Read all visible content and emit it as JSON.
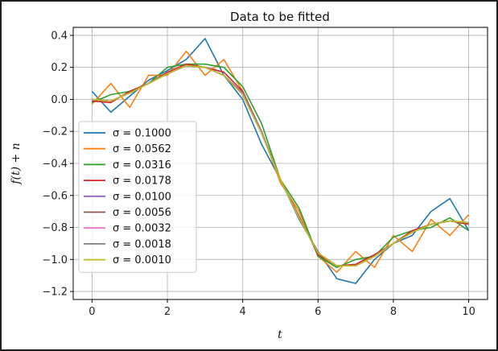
{
  "chart_data": {
    "type": "line",
    "title": "Data to be fitted",
    "xlabel": "t",
    "ylabel": "f(t) + n",
    "xlim": [
      -0.5,
      10.5
    ],
    "ylim": [
      -1.25,
      0.45
    ],
    "xticks": [
      0,
      2,
      4,
      6,
      8,
      10
    ],
    "yticks": [
      0.4,
      0.2,
      0.0,
      -0.2,
      -0.4,
      -0.6,
      -0.8,
      -1.0,
      -1.2
    ],
    "ytick_labels": [
      "0.4",
      "0.2",
      "0.0",
      "−0.2",
      "−0.4",
      "−0.6",
      "−0.8",
      "−1.0",
      "−1.2"
    ],
    "grid": true,
    "legend_position": "lower-left",
    "x": [
      0.0,
      0.5,
      1.0,
      1.5,
      2.0,
      2.5,
      3.0,
      3.5,
      4.0,
      4.5,
      5.0,
      5.5,
      6.0,
      6.5,
      7.0,
      7.5,
      8.0,
      8.5,
      9.0,
      9.5,
      10.0
    ],
    "series": [
      {
        "name": "σ = 0.1000",
        "color": "#1f77b4",
        "values": [
          0.05,
          -0.08,
          0.02,
          0.12,
          0.18,
          0.25,
          0.38,
          0.15,
          0.0,
          -0.28,
          -0.5,
          -0.75,
          -0.95,
          -1.12,
          -1.15,
          -1.0,
          -0.9,
          -0.85,
          -0.7,
          -0.62,
          -0.82
        ]
      },
      {
        "name": "σ = 0.0562",
        "color": "#ff7f0e",
        "values": [
          -0.03,
          0.1,
          -0.05,
          0.15,
          0.15,
          0.3,
          0.15,
          0.25,
          0.05,
          -0.2,
          -0.52,
          -0.7,
          -0.98,
          -1.08,
          -0.95,
          -1.05,
          -0.85,
          -0.95,
          -0.75,
          -0.85,
          -0.72
        ]
      },
      {
        "name": "σ = 0.0316",
        "color": "#2ca02c",
        "values": [
          -0.02,
          0.03,
          0.05,
          0.1,
          0.2,
          0.22,
          0.22,
          0.2,
          0.08,
          -0.15,
          -0.5,
          -0.68,
          -0.98,
          -1.05,
          -1.0,
          -0.98,
          -0.86,
          -0.82,
          -0.8,
          -0.74,
          -0.82
        ]
      },
      {
        "name": "σ = 0.0178",
        "color": "#d62728",
        "values": [
          -0.01,
          -0.02,
          0.05,
          0.1,
          0.17,
          0.22,
          0.2,
          0.17,
          0.05,
          -0.2,
          -0.5,
          -0.73,
          -0.97,
          -1.04,
          -1.03,
          -0.97,
          -0.9,
          -0.82,
          -0.78,
          -0.76,
          -0.78
        ]
      },
      {
        "name": "σ = 0.0100",
        "color": "#9467bd",
        "values": [
          0.0,
          -0.01,
          0.04,
          0.1,
          0.16,
          0.21,
          0.2,
          0.15,
          0.04,
          -0.2,
          -0.5,
          -0.74,
          -0.96,
          -1.04,
          -1.04,
          -0.98,
          -0.9,
          -0.83,
          -0.78,
          -0.76,
          -0.77
        ]
      },
      {
        "name": "σ = 0.0056",
        "color": "#8c564b",
        "values": [
          0.0,
          -0.01,
          0.04,
          0.1,
          0.16,
          0.21,
          0.2,
          0.15,
          0.03,
          -0.21,
          -0.5,
          -0.74,
          -0.96,
          -1.04,
          -1.04,
          -0.98,
          -0.9,
          -0.83,
          -0.78,
          -0.76,
          -0.77
        ]
      },
      {
        "name": "σ = 0.0032",
        "color": "#e377c2",
        "values": [
          0.0,
          -0.01,
          0.04,
          0.1,
          0.16,
          0.21,
          0.2,
          0.15,
          0.03,
          -0.21,
          -0.5,
          -0.74,
          -0.96,
          -1.04,
          -1.04,
          -0.98,
          -0.9,
          -0.83,
          -0.78,
          -0.76,
          -0.77
        ]
      },
      {
        "name": "σ = 0.0018",
        "color": "#7f7f7f",
        "values": [
          0.0,
          -0.01,
          0.04,
          0.1,
          0.16,
          0.21,
          0.2,
          0.15,
          0.03,
          -0.21,
          -0.5,
          -0.74,
          -0.96,
          -1.04,
          -1.04,
          -0.98,
          -0.9,
          -0.83,
          -0.78,
          -0.76,
          -0.77
        ]
      },
      {
        "name": "σ = 0.0010",
        "color": "#bcbd22",
        "values": [
          0.0,
          -0.01,
          0.04,
          0.1,
          0.16,
          0.21,
          0.2,
          0.15,
          0.03,
          -0.21,
          -0.5,
          -0.74,
          -0.96,
          -1.04,
          -1.04,
          -0.98,
          -0.9,
          -0.83,
          -0.78,
          -0.76,
          -0.77
        ]
      }
    ]
  }
}
